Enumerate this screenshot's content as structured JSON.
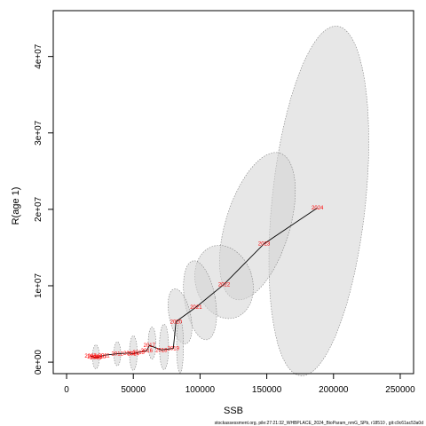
{
  "chart_data": {
    "type": "scatter",
    "title": "",
    "xlabel": "SSB",
    "ylabel": "R(age 1)",
    "xlim": [
      -10000,
      260000
    ],
    "ylim": [
      -1500000,
      46000000
    ],
    "x_ticks": [
      0,
      50000,
      100000,
      150000,
      200000,
      250000
    ],
    "x_tick_labels": [
      "0",
      "50000",
      "100000",
      "150000",
      "200000",
      "250000"
    ],
    "y_ticks": [
      0,
      10000000,
      20000000,
      30000000,
      40000000
    ],
    "y_tick_labels": [
      "0e+00",
      "1e+07",
      "2e+07",
      "3e+07",
      "4e+07"
    ],
    "grid": false,
    "legend": "none",
    "line_color": "#000000",
    "label_color": "#ff0000",
    "ellipse_fill": "#d3d3d3",
    "ellipse_stroke": "#808080",
    "points": [
      {
        "year": "2007",
        "ssb": 18000,
        "rec": 800000
      },
      {
        "year": "2008",
        "ssb": 20000,
        "rec": 700000
      },
      {
        "year": "2009",
        "ssb": 22000,
        "rec": 600000
      },
      {
        "year": "2010",
        "ssb": 25000,
        "rec": 700000
      },
      {
        "year": "2011",
        "ssb": 28000,
        "rec": 900000
      },
      {
        "year": "2012",
        "ssb": 38000,
        "rec": 1100000
      },
      {
        "year": "2013",
        "ssb": 47000,
        "rec": 1200000
      },
      {
        "year": "2014",
        "ssb": 50000,
        "rec": 1100000
      },
      {
        "year": "2015",
        "ssb": 54000,
        "rec": 1300000
      },
      {
        "year": "2016",
        "ssb": 60000,
        "rec": 1500000
      },
      {
        "year": "2017",
        "ssb": 62000,
        "rec": 2200000
      },
      {
        "year": "2018",
        "ssb": 71000,
        "rec": 1600000
      },
      {
        "year": "2019",
        "ssb": 80000,
        "rec": 1800000
      },
      {
        "year": "2020",
        "ssb": 82000,
        "rec": 5300000
      },
      {
        "year": "2021",
        "ssb": 97000,
        "rec": 7200000
      },
      {
        "year": "2022",
        "ssb": 118000,
        "rec": 10200000
      },
      {
        "year": "2023",
        "ssb": 148000,
        "rec": 15500000
      },
      {
        "year": "2024",
        "ssb": 188000,
        "rec": 20200000
      }
    ],
    "ellipses": [
      {
        "year": "2024",
        "cx": 189000,
        "cy": 21100000,
        "rx": 35000,
        "ry": 23000000,
        "angle": 84
      },
      {
        "year": "2023",
        "cx": 143000,
        "cy": 17800000,
        "rx": 24000,
        "ry": 10000000,
        "angle": 73
      },
      {
        "year": "2022",
        "cx": 118000,
        "cy": 10500000,
        "rx": 28000,
        "ry": 3700000,
        "angle": 18
      },
      {
        "year": "2021",
        "cx": 100000,
        "cy": 8100000,
        "rx": 30000,
        "ry": 2000000,
        "angle": 10
      },
      {
        "year": "2020",
        "cx": 85000,
        "cy": 6000000,
        "rx": 21000,
        "ry": 1400000,
        "angle": 12
      },
      {
        "year": "2019",
        "cx": 85000,
        "cy": 2100000,
        "rx": 20000,
        "ry": 450000,
        "angle": 0
      },
      {
        "year": "2018",
        "cx": 73000,
        "cy": 2000000,
        "rx": 17000,
        "ry": 600000,
        "angle": 0
      },
      {
        "year": "2017",
        "cx": 64000,
        "cy": 2500000,
        "rx": 12000,
        "ry": 500000,
        "angle": 0
      },
      {
        "year": "2013",
        "cx": 50000,
        "cy": 1200000,
        "rx": 13000,
        "ry": 500000,
        "angle": 0
      },
      {
        "year": "2012",
        "cx": 38000,
        "cy": 1100000,
        "rx": 9000,
        "ry": 450000,
        "angle": 0
      },
      {
        "year": "2009",
        "cx": 22000,
        "cy": 700000,
        "rx": 9000,
        "ry": 450000,
        "angle": 0
      }
    ]
  },
  "footer": "stockassessment.org, pile:27:21:32_WHBPLACE_2024_BioParam_nmG_SPb, r18510 , git:c9c61ac53a0d"
}
